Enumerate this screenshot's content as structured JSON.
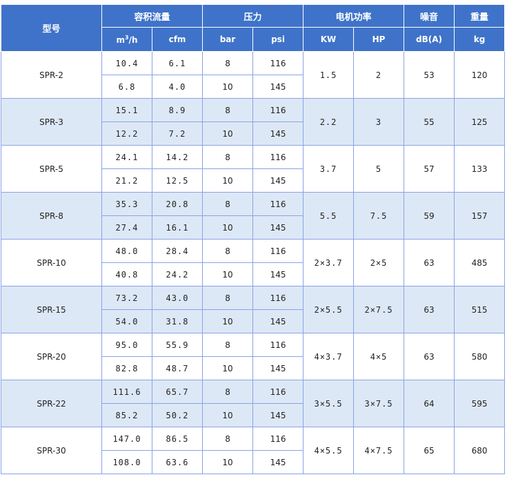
{
  "header": {
    "model": "型号",
    "flow": "容积流量",
    "pressure": "压力",
    "motor_power": "电机功率",
    "noise": "噪音",
    "weight": "重量",
    "units": {
      "flow_m3_base": "m",
      "flow_m3_sup": "3",
      "flow_m3_tail": "/h",
      "cfm": "cfm",
      "bar": "bar",
      "psi": "psi",
      "kw": "KW",
      "hp": "HP",
      "dba": "dB(A)",
      "kg": "kg"
    }
  },
  "models": [
    {
      "model": "SPR-2",
      "kw": "1.5",
      "hp": "2",
      "noise": "53",
      "weight": "120",
      "rows": [
        {
          "m3h": "10.4",
          "cfm": "6.1",
          "bar": "8",
          "psi": "116"
        },
        {
          "m3h": "6.8",
          "cfm": "4.0",
          "bar": "10",
          "psi": "145"
        }
      ]
    },
    {
      "model": "SPR-3",
      "kw": "2.2",
      "hp": "3",
      "noise": "55",
      "weight": "125",
      "rows": [
        {
          "m3h": "15.1",
          "cfm": "8.9",
          "bar": "8",
          "psi": "116"
        },
        {
          "m3h": "12.2",
          "cfm": "7.2",
          "bar": "10",
          "psi": "145"
        }
      ]
    },
    {
      "model": "SPR-5",
      "kw": "3.7",
      "hp": "5",
      "noise": "57",
      "weight": "133",
      "rows": [
        {
          "m3h": "24.1",
          "cfm": "14.2",
          "bar": "8",
          "psi": "116"
        },
        {
          "m3h": "21.2",
          "cfm": "12.5",
          "bar": "10",
          "psi": "145"
        }
      ]
    },
    {
      "model": "SPR-8",
      "kw": "5.5",
      "hp": "7.5",
      "noise": "59",
      "weight": "157",
      "rows": [
        {
          "m3h": "35.3",
          "cfm": "20.8",
          "bar": "8",
          "psi": "116"
        },
        {
          "m3h": "27.4",
          "cfm": "16.1",
          "bar": "10",
          "psi": "145"
        }
      ]
    },
    {
      "model": "SPR-10",
      "kw": "2×3.7",
      "hp": "2×5",
      "noise": "63",
      "weight": "485",
      "rows": [
        {
          "m3h": "48.0",
          "cfm": "28.4",
          "bar": "8",
          "psi": "116"
        },
        {
          "m3h": "40.8",
          "cfm": "24.2",
          "bar": "10",
          "psi": "145"
        }
      ]
    },
    {
      "model": "SPR-15",
      "kw": "2×5.5",
      "hp": "2×7.5",
      "noise": "63",
      "weight": "515",
      "rows": [
        {
          "m3h": "73.2",
          "cfm": "43.0",
          "bar": "8",
          "psi": "116"
        },
        {
          "m3h": "54.0",
          "cfm": "31.8",
          "bar": "10",
          "psi": "145"
        }
      ]
    },
    {
      "model": "SPR-20",
      "kw": "4×3.7",
      "hp": "4×5",
      "noise": "63",
      "weight": "580",
      "rows": [
        {
          "m3h": "95.0",
          "cfm": "55.9",
          "bar": "8",
          "psi": "116"
        },
        {
          "m3h": "82.8",
          "cfm": "48.7",
          "bar": "10",
          "psi": "145"
        }
      ]
    },
    {
      "model": "SPR-22",
      "kw": "3×5.5",
      "hp": "3×7.5",
      "noise": "64",
      "weight": "595",
      "rows": [
        {
          "m3h": "111.6",
          "cfm": "65.7",
          "bar": "8",
          "psi": "116"
        },
        {
          "m3h": "85.2",
          "cfm": "50.2",
          "bar": "10",
          "psi": "145"
        }
      ]
    },
    {
      "model": "SPR-30",
      "kw": "4×5.5",
      "hp": "4×7.5",
      "noise": "65",
      "weight": "680",
      "rows": [
        {
          "m3h": "147.0",
          "cfm": "86.5",
          "bar": "8",
          "psi": "116"
        },
        {
          "m3h": "108.0",
          "cfm": "63.6",
          "bar": "10",
          "psi": "145"
        }
      ]
    }
  ]
}
